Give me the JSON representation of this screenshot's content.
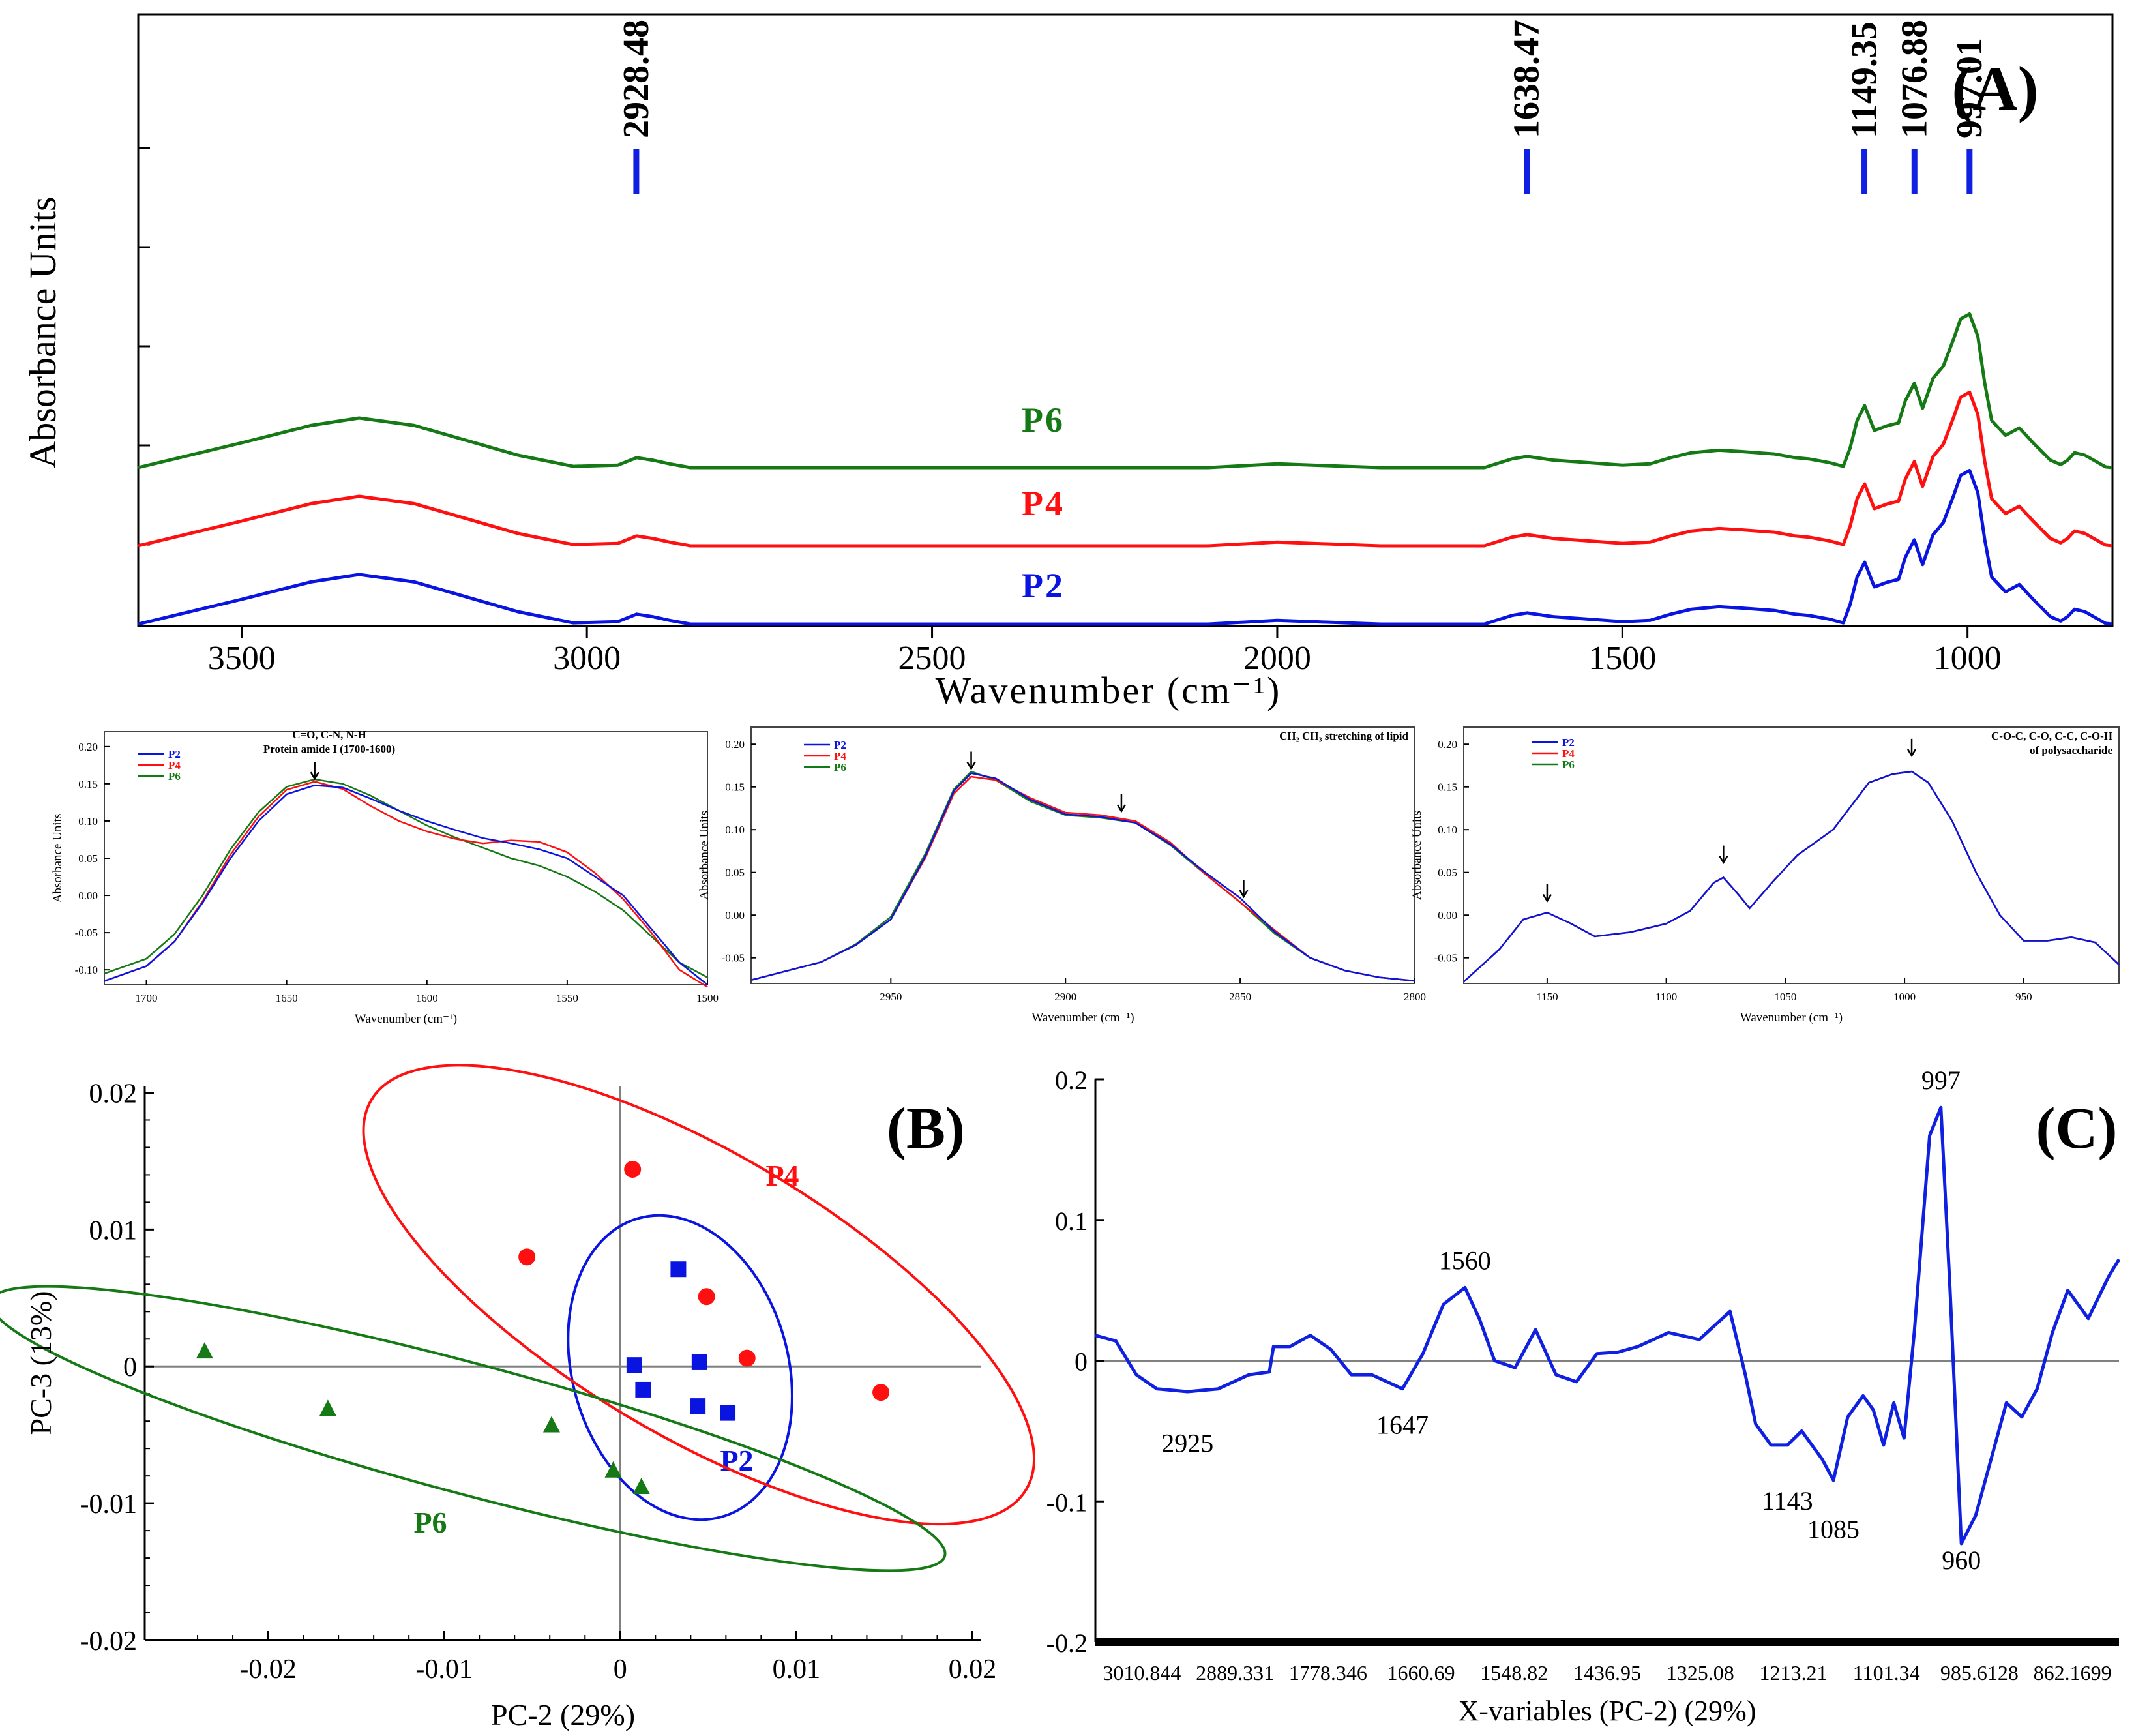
{
  "colors": {
    "P2": "#0a14e0",
    "P4": "#ff0f0f",
    "P6": "#157a15",
    "axis": "#000000",
    "zero": "#808080",
    "arrow": "#000000"
  },
  "chart_data": [
    {
      "id": "A",
      "type": "line",
      "panel_label": "(A)",
      "xlabel": "Wavenumber (cm⁻¹)",
      "ylabel": "Absorbance Units",
      "xlim": [
        3650,
        790
      ],
      "x_ticks": [
        3500,
        3000,
        2500,
        2000,
        1500,
        1000
      ],
      "x_tick_labels": [
        "3500",
        "3000",
        "2500",
        "2000",
        "1500",
        "1000"
      ],
      "y_tick_count": 5,
      "peak_markers": [
        {
          "x": 2928.48,
          "label": "2928.48"
        },
        {
          "x": 1638.47,
          "label": "1638.47"
        },
        {
          "x": 1149.35,
          "label": "1149.35"
        },
        {
          "x": 1076.88,
          "label": "1076.88"
        },
        {
          "x": 997.01,
          "label": "997.01"
        }
      ],
      "x": [
        3650,
        3500,
        3400,
        3330,
        3250,
        3100,
        3020,
        2955,
        2928,
        2905,
        2880,
        2850,
        2700,
        2500,
        2100,
        2000,
        1900,
        1850,
        1700,
        1660,
        1638,
        1600,
        1550,
        1500,
        1460,
        1430,
        1400,
        1360,
        1330,
        1280,
        1250,
        1230,
        1200,
        1180,
        1170,
        1160,
        1149,
        1135,
        1115,
        1100,
        1090,
        1077,
        1065,
        1050,
        1035,
        1020,
        1010,
        997,
        985,
        975,
        965,
        945,
        925,
        905,
        880,
        865,
        855,
        845,
        830,
        800,
        790
      ],
      "series": [
        {
          "name": "P6",
          "label": "P6",
          "offset": 0.4,
          "values": [
            0,
            0.1,
            0.17,
            0.2,
            0.17,
            0.05,
            0.005,
            0.01,
            0.04,
            0.03,
            0.015,
            0,
            0,
            0,
            0,
            0.015,
            0.005,
            0,
            0,
            0.035,
            0.045,
            0.03,
            0.02,
            0.01,
            0.015,
            0.04,
            0.06,
            0.07,
            0.065,
            0.055,
            0.04,
            0.035,
            0.02,
            0.005,
            0.08,
            0.19,
            0.25,
            0.15,
            0.17,
            0.18,
            0.27,
            0.34,
            0.24,
            0.36,
            0.41,
            0.52,
            0.6,
            0.62,
            0.53,
            0.34,
            0.19,
            0.13,
            0.16,
            0.1,
            0.03,
            0.012,
            0.03,
            0.06,
            0.05,
            0.003,
            0
          ]
        },
        {
          "name": "P4",
          "label": "P4",
          "offset": 0.2,
          "values": [
            0,
            0.1,
            0.17,
            0.2,
            0.17,
            0.05,
            0.005,
            0.01,
            0.04,
            0.03,
            0.015,
            0,
            0,
            0,
            0,
            0.015,
            0.005,
            0,
            0,
            0.035,
            0.045,
            0.03,
            0.02,
            0.01,
            0.015,
            0.04,
            0.06,
            0.07,
            0.065,
            0.055,
            0.04,
            0.035,
            0.02,
            0.005,
            0.08,
            0.19,
            0.25,
            0.15,
            0.17,
            0.18,
            0.27,
            0.34,
            0.24,
            0.36,
            0.41,
            0.52,
            0.6,
            0.62,
            0.53,
            0.34,
            0.19,
            0.13,
            0.16,
            0.1,
            0.03,
            0.012,
            0.03,
            0.06,
            0.05,
            0.003,
            0
          ]
        },
        {
          "name": "P2",
          "label": "P2",
          "offset": 0.0,
          "values": [
            0,
            0.1,
            0.17,
            0.2,
            0.17,
            0.05,
            0.005,
            0.01,
            0.04,
            0.03,
            0.015,
            0,
            0,
            0,
            0,
            0.015,
            0.005,
            0,
            0,
            0.035,
            0.045,
            0.03,
            0.02,
            0.01,
            0.015,
            0.04,
            0.06,
            0.07,
            0.065,
            0.055,
            0.04,
            0.035,
            0.02,
            0.005,
            0.08,
            0.19,
            0.25,
            0.15,
            0.17,
            0.18,
            0.27,
            0.34,
            0.24,
            0.36,
            0.41,
            0.52,
            0.6,
            0.62,
            0.53,
            0.34,
            0.19,
            0.13,
            0.16,
            0.1,
            0.03,
            0.012,
            0.03,
            0.06,
            0.05,
            0.003,
            0
          ]
        }
      ]
    },
    {
      "id": "A1",
      "type": "line",
      "title_lines": [
        "C=O, C-N, N-H",
        "Protein amide I (1700-1600)"
      ],
      "xlabel": "Wavenumber (cm⁻¹)",
      "ylabel": "Absorbance Units",
      "xlim": [
        1715,
        1500
      ],
      "ylim": [
        -0.12,
        0.22
      ],
      "x_ticks": [
        1700,
        1650,
        1600,
        1550,
        1500
      ],
      "y_ticks": [
        -0.1,
        -0.05,
        0.0,
        0.05,
        0.1,
        0.15,
        0.2
      ],
      "y_tick_labels": [
        "-0.10",
        "-0.05",
        "0.00",
        "0.05",
        "0.10",
        "0.15",
        "0.20"
      ],
      "legend": [
        "P2",
        "P4",
        "P6"
      ],
      "arrows": [
        {
          "x": 1640,
          "y": 0.155
        }
      ],
      "x": [
        1715,
        1700,
        1690,
        1680,
        1670,
        1660,
        1650,
        1640,
        1630,
        1620,
        1610,
        1600,
        1590,
        1580,
        1570,
        1560,
        1550,
        1540,
        1530,
        1520,
        1510,
        1500
      ],
      "series": [
        {
          "name": "P2",
          "values": [
            -0.115,
            -0.095,
            -0.062,
            -0.01,
            0.05,
            0.1,
            0.136,
            0.148,
            0.145,
            0.13,
            0.114,
            0.1,
            0.088,
            0.077,
            0.07,
            0.062,
            0.05,
            0.025,
            0.0,
            -0.045,
            -0.09,
            -0.12
          ]
        },
        {
          "name": "P4",
          "values": [
            -0.115,
            -0.095,
            -0.062,
            -0.008,
            0.055,
            0.106,
            0.142,
            0.153,
            0.143,
            0.12,
            0.1,
            0.086,
            0.076,
            0.07,
            0.074,
            0.072,
            0.058,
            0.03,
            -0.005,
            -0.05,
            -0.1,
            -0.123
          ]
        },
        {
          "name": "P6",
          "values": [
            -0.105,
            -0.085,
            -0.052,
            0.0,
            0.062,
            0.112,
            0.146,
            0.156,
            0.15,
            0.134,
            0.114,
            0.094,
            0.078,
            0.064,
            0.05,
            0.04,
            0.025,
            0.005,
            -0.02,
            -0.055,
            -0.09,
            -0.11
          ]
        }
      ]
    },
    {
      "id": "A2",
      "type": "line",
      "title_lines": [
        "CH₂ CH₃ stretching of lipid"
      ],
      "xlabel": "Wavenumber (cm⁻¹)",
      "ylabel": "Absorbance Units",
      "xlim": [
        2990,
        2800
      ],
      "ylim": [
        -0.08,
        0.22
      ],
      "x_ticks": [
        2950,
        2900,
        2850,
        2800
      ],
      "y_ticks": [
        -0.05,
        0.0,
        0.05,
        0.1,
        0.15,
        0.2
      ],
      "y_tick_labels": [
        "-0.05",
        "0.00",
        "0.05",
        "0.10",
        "0.15",
        "0.20"
      ],
      "legend": [
        "P2",
        "P4",
        "P6"
      ],
      "arrows": [
        {
          "x": 2927,
          "y": 0.17
        },
        {
          "x": 2884,
          "y": 0.12
        },
        {
          "x": 2849,
          "y": 0.02
        }
      ],
      "x": [
        2990,
        2970,
        2960,
        2950,
        2940,
        2932,
        2927,
        2920,
        2910,
        2900,
        2890,
        2880,
        2870,
        2860,
        2850,
        2840,
        2830,
        2820,
        2810,
        2800
      ],
      "series": [
        {
          "name": "P2",
          "values": [
            -0.076,
            -0.055,
            -0.035,
            -0.005,
            0.07,
            0.145,
            0.166,
            0.16,
            0.135,
            0.118,
            0.115,
            0.108,
            0.083,
            0.05,
            0.02,
            -0.02,
            -0.05,
            -0.065,
            -0.073,
            -0.077
          ]
        },
        {
          "name": "P4",
          "values": [
            -0.076,
            -0.055,
            -0.035,
            -0.005,
            0.068,
            0.142,
            0.162,
            0.158,
            0.137,
            0.12,
            0.117,
            0.11,
            0.085,
            0.048,
            0.015,
            -0.018,
            -0.05,
            -0.065,
            -0.073,
            -0.077
          ]
        },
        {
          "name": "P6",
          "values": [
            -0.076,
            -0.055,
            -0.034,
            -0.002,
            0.073,
            0.147,
            0.168,
            0.158,
            0.133,
            0.117,
            0.114,
            0.108,
            0.082,
            0.048,
            0.015,
            -0.022,
            -0.05,
            -0.065,
            -0.073,
            -0.077
          ]
        }
      ]
    },
    {
      "id": "A3",
      "type": "line",
      "title_lines": [
        "C-O-C, C-O, C-C, C-O-H",
        "of polysaccharide"
      ],
      "xlabel": "Wavenumber (cm⁻¹)",
      "ylabel": "Absorbance Units",
      "xlim": [
        1185,
        910
      ],
      "ylim": [
        -0.08,
        0.22
      ],
      "x_ticks": [
        1150,
        1100,
        1050,
        1000,
        950
      ],
      "y_ticks": [
        -0.05,
        0.0,
        0.05,
        0.1,
        0.15,
        0.2
      ],
      "y_tick_labels": [
        "-0.05",
        "0.00",
        "0.05",
        "0.10",
        "0.15",
        "0.20"
      ],
      "legend": [
        "P2",
        "P4",
        "P6"
      ],
      "arrows": [
        {
          "x": 1150,
          "y": 0.015
        },
        {
          "x": 1076,
          "y": 0.06
        },
        {
          "x": 997,
          "y": 0.185
        }
      ],
      "x": [
        1185,
        1170,
        1160,
        1150,
        1140,
        1130,
        1115,
        1100,
        1090,
        1080,
        1076,
        1070,
        1065,
        1055,
        1045,
        1030,
        1015,
        1005,
        997,
        990,
        980,
        970,
        960,
        950,
        940,
        930,
        920,
        910
      ],
      "series": [
        {
          "name": "P2",
          "values": [
            -0.078,
            -0.04,
            -0.005,
            0.003,
            -0.01,
            -0.025,
            -0.02,
            -0.01,
            0.005,
            0.038,
            0.044,
            0.025,
            0.008,
            0.04,
            0.07,
            0.1,
            0.155,
            0.165,
            0.168,
            0.155,
            0.11,
            0.05,
            0.0,
            -0.03,
            -0.03,
            -0.026,
            -0.032,
            -0.058
          ]
        },
        {
          "name": "P4",
          "values": [
            -0.078,
            -0.04,
            -0.005,
            0.003,
            -0.01,
            -0.025,
            -0.02,
            -0.01,
            0.005,
            0.038,
            0.044,
            0.025,
            0.008,
            0.04,
            0.07,
            0.1,
            0.155,
            0.165,
            0.168,
            0.155,
            0.11,
            0.05,
            0.0,
            -0.03,
            -0.03,
            -0.026,
            -0.032,
            -0.058
          ]
        },
        {
          "name": "P6",
          "values": [
            -0.078,
            -0.04,
            -0.005,
            0.003,
            -0.01,
            -0.025,
            -0.02,
            -0.01,
            0.005,
            0.038,
            0.044,
            0.025,
            0.008,
            0.04,
            0.07,
            0.1,
            0.155,
            0.165,
            0.168,
            0.155,
            0.11,
            0.05,
            0.0,
            -0.03,
            -0.03,
            -0.026,
            -0.032,
            -0.058
          ]
        }
      ]
    },
    {
      "id": "B",
      "type": "scatter",
      "panel_label": "(B)",
      "xlabel": "PC-2 (29%)",
      "ylabel": "PC-3 (13%)",
      "xlim": [
        -0.027,
        0.0205
      ],
      "ylim": [
        -0.02,
        0.0205
      ],
      "x_ticks": [
        -0.02,
        -0.01,
        0,
        0.01,
        0.02
      ],
      "x_tick_labels": [
        "-0.02",
        "-0.01",
        "0",
        "0.01",
        "0.02"
      ],
      "y_ticks": [
        -0.02,
        -0.01,
        0,
        0.01,
        0.02
      ],
      "y_tick_labels": [
        "-0.02",
        "-0.01",
        "0",
        "0.01",
        "0.02"
      ],
      "series": [
        {
          "name": "P2",
          "label": "P2",
          "marker": "square",
          "points": [
            [
              0.0033,
              0.0071
            ],
            [
              0.0045,
              0.0003
            ],
            [
              0.0008,
              0.0001
            ],
            [
              0.0013,
              -0.0017
            ],
            [
              0.0044,
              -0.0029
            ],
            [
              0.0061,
              -0.0034
            ]
          ]
        },
        {
          "name": "P4",
          "label": "P4",
          "marker": "circle",
          "points": [
            [
              0.0007,
              0.0144
            ],
            [
              -0.0053,
              0.008
            ],
            [
              0.0049,
              0.0051
            ],
            [
              0.0072,
              0.0006
            ],
            [
              0.0148,
              -0.0019
            ]
          ]
        },
        {
          "name": "P6",
          "label": "P6",
          "marker": "triangle",
          "points": [
            [
              -0.0236,
              0.0011
            ],
            [
              -0.0166,
              -0.0031
            ],
            [
              -0.0039,
              -0.0043
            ],
            [
              -0.0004,
              -0.0076
            ],
            [
              0.0012,
              -0.0088
            ]
          ]
        }
      ]
    },
    {
      "id": "C",
      "type": "line",
      "panel_label": "(C)",
      "xlabel": "X-variables (PC-2) (29%)",
      "ylim": [
        -0.2,
        0.2
      ],
      "y_ticks": [
        -0.2,
        -0.1,
        0,
        0.1,
        0.2
      ],
      "y_tick_labels": [
        "-0.2",
        "-0.1",
        "0",
        "0.1",
        "0.2"
      ],
      "x_tick_labels": [
        "3010.844",
        "2889.331",
        "1778.346",
        "1660.69",
        "1548.82",
        "1436.95",
        "1325.08",
        "1213.21",
        "1101.34",
        "985.6128",
        "862.1699"
      ],
      "annotations": [
        {
          "idx": 0.09,
          "value": -0.065,
          "label": "2925"
        },
        {
          "idx": 0.3,
          "value": -0.052,
          "label": "1647"
        },
        {
          "idx": 0.361,
          "value": 0.065,
          "label": "1560"
        },
        {
          "idx": 0.676,
          "value": -0.106,
          "label": "1143"
        },
        {
          "idx": 0.721,
          "value": -0.126,
          "label": "1085"
        },
        {
          "idx": 0.826,
          "value": 0.193,
          "label": "997"
        },
        {
          "idx": 0.846,
          "value": -0.148,
          "label": "960"
        }
      ],
      "idx": [
        0,
        0.02,
        0.04,
        0.06,
        0.09,
        0.12,
        0.15,
        0.17,
        0.174,
        0.19,
        0.21,
        0.23,
        0.25,
        0.27,
        0.3,
        0.32,
        0.34,
        0.361,
        0.375,
        0.39,
        0.41,
        0.43,
        0.45,
        0.47,
        0.49,
        0.51,
        0.53,
        0.56,
        0.59,
        0.62,
        0.635,
        0.645,
        0.66,
        0.676,
        0.69,
        0.7,
        0.71,
        0.721,
        0.735,
        0.75,
        0.76,
        0.77,
        0.78,
        0.79,
        0.8,
        0.815,
        0.826,
        0.835,
        0.846,
        0.86,
        0.875,
        0.89,
        0.905,
        0.92,
        0.935,
        0.95,
        0.97,
        0.99,
        1.0
      ],
      "values": [
        0.018,
        0.014,
        -0.01,
        -0.02,
        -0.022,
        -0.02,
        -0.01,
        -0.008,
        0.01,
        0.01,
        0.018,
        0.008,
        -0.01,
        -0.01,
        -0.02,
        0.005,
        0.04,
        0.052,
        0.03,
        0.0,
        -0.005,
        0.022,
        -0.01,
        -0.015,
        0.005,
        0.006,
        0.01,
        0.02,
        0.015,
        0.035,
        -0.01,
        -0.045,
        -0.06,
        -0.06,
        -0.05,
        -0.06,
        -0.07,
        -0.085,
        -0.04,
        -0.025,
        -0.035,
        -0.06,
        -0.03,
        -0.055,
        0.02,
        0.16,
        0.18,
        0.05,
        -0.13,
        -0.11,
        -0.07,
        -0.03,
        -0.04,
        -0.02,
        0.02,
        0.05,
        0.03,
        0.06,
        0.072
      ]
    }
  ]
}
